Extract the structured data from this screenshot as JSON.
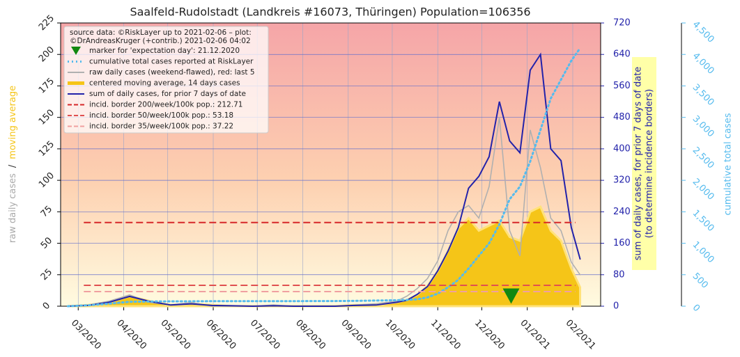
{
  "chart_data": {
    "type": "line",
    "title": "Saalfeld-Rudolstadt (Landkreis #16073, Thüringen) Population=106356",
    "source_text": [
      "source data: ©RiskLayer up to 2021-02-06 – plot:",
      "©DrAndreasKruger (+contrib.) 2021-02-06 04:02"
    ],
    "ylabel_parts": [
      {
        "text": "raw daily cases",
        "color": "#aaaaaa"
      },
      {
        "text": "/",
        "color": "#333333"
      },
      {
        "text": "moving average",
        "color": "#f5c518"
      }
    ],
    "y2label": [
      "sum of daily cases, for prior 7 days of date",
      "(to determine incidence borders)"
    ],
    "y3label": "cumulative total cases",
    "xlim": [
      "2020-02-18",
      "2021-02-20"
    ],
    "xticks": [
      {
        "value": "2020-03-01",
        "label": "03/2020"
      },
      {
        "value": "2020-04-01",
        "label": "04/2020"
      },
      {
        "value": "2020-05-01",
        "label": "05/2020"
      },
      {
        "value": "2020-06-01",
        "label": "06/2020"
      },
      {
        "value": "2020-07-01",
        "label": "07/2020"
      },
      {
        "value": "2020-08-01",
        "label": "08/2020"
      },
      {
        "value": "2020-09-01",
        "label": "09/2020"
      },
      {
        "value": "2020-10-01",
        "label": "10/2020"
      },
      {
        "value": "2020-11-01",
        "label": "11/2020"
      },
      {
        "value": "2020-12-01",
        "label": "12/2020"
      },
      {
        "value": "2021-01-01",
        "label": "01/2021"
      },
      {
        "value": "2021-02-01",
        "label": "02/2021"
      }
    ],
    "ylim": [
      0,
      225
    ],
    "yticks": [
      0,
      25,
      50,
      75,
      100,
      125,
      150,
      175,
      200,
      225
    ],
    "y2lim": [
      0,
      720
    ],
    "y2ticks": [
      0,
      80,
      160,
      240,
      320,
      400,
      480,
      560,
      640,
      720
    ],
    "y3lim": [
      0,
      4500
    ],
    "y3ticks": [
      0,
      500,
      {
        "value": 1000,
        "label": "1,000"
      },
      {
        "value": 1500,
        "label": "1,500"
      },
      {
        "value": 2000,
        "label": "2,000"
      },
      {
        "value": 2500,
        "label": "2,500"
      },
      {
        "value": 3000,
        "label": "3,000"
      },
      {
        "value": 3500,
        "label": "3,500"
      },
      {
        "value": 4000,
        "label": "4,000"
      },
      {
        "value": 4500,
        "label": "4,500"
      }
    ],
    "grid": true,
    "x": [
      "2020-02-23",
      "2020-03-08",
      "2020-03-22",
      "2020-04-05",
      "2020-04-19",
      "2020-05-03",
      "2020-05-17",
      "2020-05-31",
      "2020-06-14",
      "2020-06-28",
      "2020-07-12",
      "2020-07-26",
      "2020-08-09",
      "2020-08-23",
      "2020-09-06",
      "2020-09-20",
      "2020-10-04",
      "2020-10-11",
      "2020-10-18",
      "2020-10-25",
      "2020-11-01",
      "2020-11-08",
      "2020-11-15",
      "2020-11-22",
      "2020-11-29",
      "2020-12-06",
      "2020-12-13",
      "2020-12-20",
      "2020-12-27",
      "2021-01-03",
      "2021-01-10",
      "2021-01-17",
      "2021-01-24",
      "2021-01-31",
      "2021-02-06"
    ],
    "series": [
      {
        "name": "raw daily cases (weekend-flawed), red: last 5",
        "color": "#b0b0b0",
        "axis": "y",
        "style": "line",
        "values": [
          0,
          1,
          4,
          9,
          3,
          1,
          3,
          0,
          0,
          0,
          1,
          0,
          0,
          0,
          1,
          2,
          4,
          8,
          14,
          22,
          36,
          60,
          75,
          80,
          70,
          95,
          150,
          60,
          40,
          140,
          110,
          70,
          60,
          35,
          25
        ]
      },
      {
        "name": "centered moving average, 14 days cases",
        "color": "#f5c518",
        "axis": "y",
        "style": "area",
        "values": [
          0,
          1,
          3,
          8,
          4,
          1,
          2,
          1,
          0,
          0,
          0,
          0,
          0,
          0,
          1,
          1,
          3,
          5,
          9,
          16,
          28,
          44,
          62,
          70,
          60,
          64,
          68,
          55,
          52,
          75,
          79,
          60,
          52,
          30,
          15
        ]
      },
      {
        "name": "sum of daily cases, for prior 7 days of date",
        "color": "#2222aa",
        "axis": "y2",
        "style": "line",
        "values": [
          0,
          2,
          10,
          25,
          12,
          3,
          6,
          2,
          1,
          0,
          1,
          0,
          0,
          0,
          2,
          3,
          10,
          15,
          30,
          50,
          90,
          140,
          200,
          300,
          330,
          380,
          520,
          420,
          390,
          600,
          640,
          400,
          370,
          200,
          120
        ]
      },
      {
        "name": "cumulative total cases reported at RiskLayer",
        "color": "#55bbee",
        "axis": "y3",
        "style": "dotted",
        "values": [
          0,
          15,
          40,
          70,
          75,
          77,
          78,
          80,
          80,
          80,
          80,
          80,
          82,
          82,
          85,
          90,
          95,
          100,
          110,
          140,
          200,
          300,
          420,
          600,
          800,
          1000,
          1300,
          1700,
          1900,
          2300,
          2800,
          3300,
          3600,
          3900,
          4100
        ]
      }
    ],
    "borders": [
      {
        "name": "incid. border 200/week/100k pop.: 212.71",
        "value": 212.71,
        "color": "#d62728"
      },
      {
        "name": "incid. border 50/week/100k pop.: 53.18",
        "value": 53.18,
        "color": "#e05050"
      },
      {
        "name": "incid. border 35/week/100k pop.: 37.22",
        "value": 37.22,
        "color": "#f0a0a0"
      }
    ],
    "marker": {
      "name": "marker for 'expectation day': 21.12.2020",
      "x": "2020-12-21",
      "y": 8,
      "color": "#118811"
    }
  }
}
